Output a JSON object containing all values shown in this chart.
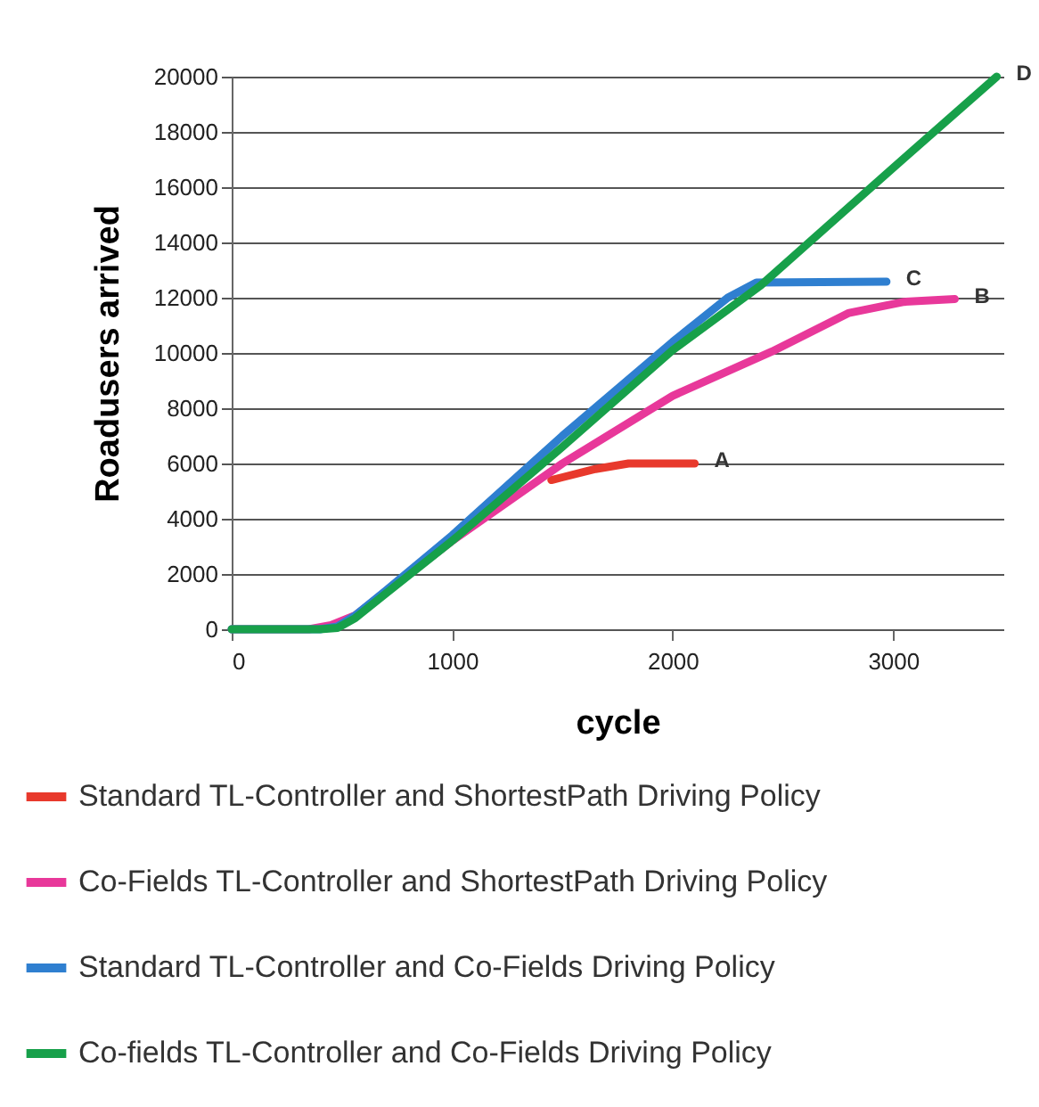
{
  "chart_data": {
    "type": "line",
    "xlabel": "cycle",
    "ylabel": "Roadusers arrived",
    "xlim": [
      0,
      3500
    ],
    "xticks": [
      0,
      1000,
      2000,
      3000
    ],
    "ylim": [
      0,
      20000
    ],
    "yticks": [
      0,
      2000,
      4000,
      6000,
      8000,
      10000,
      12000,
      14000,
      16000,
      18000,
      20000
    ],
    "grid": "y",
    "legend": "bottom",
    "marker": "none",
    "line_style": "solid",
    "series": [
      {
        "name": "Standard TL-Controller and ShortestPath Driving Policy",
        "color": "#e8392c",
        "x": [
          1450,
          1500,
          1650,
          1800,
          2100
        ],
        "values": [
          5400,
          5500,
          5800,
          6000,
          6000
        ]
      },
      {
        "name": "Co-Fields TL-Controller and ShortestPath Driving Policy",
        "color": "#e8389a",
        "x": [
          0,
          350,
          450,
          560,
          1000,
          1500,
          2000,
          2450,
          2800,
          3050,
          3280
        ],
        "values": [
          0,
          0,
          150,
          500,
          3200,
          6000,
          8450,
          10050,
          11450,
          11850,
          11950
        ]
      },
      {
        "name": "Standard TL-Controller and Co-Fields Driving Policy",
        "color": "#2f7fd0",
        "x": [
          0,
          400,
          480,
          560,
          700,
          1000,
          1500,
          2000,
          2250,
          2380,
          2970
        ],
        "values": [
          0,
          0,
          100,
          500,
          1400,
          3400,
          7000,
          10400,
          12000,
          12550,
          12580
        ]
      },
      {
        "name": "Co-fields TL-Controller and Co-Fields Driving Policy",
        "color": "#17a04a",
        "x": [
          0,
          400,
          480,
          560,
          700,
          1000,
          1500,
          2000,
          2400,
          3000,
          3470
        ],
        "values": [
          0,
          0,
          50,
          400,
          1300,
          3200,
          6600,
          10100,
          12450,
          16700,
          20000
        ]
      }
    ],
    "annotations": [
      {
        "text": "A",
        "x": 2100,
        "y": 6000
      },
      {
        "text": "B",
        "x": 3280,
        "y": 11950
      },
      {
        "text": "C",
        "x": 2970,
        "y": 12580
      },
      {
        "text": "D",
        "x": 3470,
        "y": 20000
      }
    ]
  }
}
